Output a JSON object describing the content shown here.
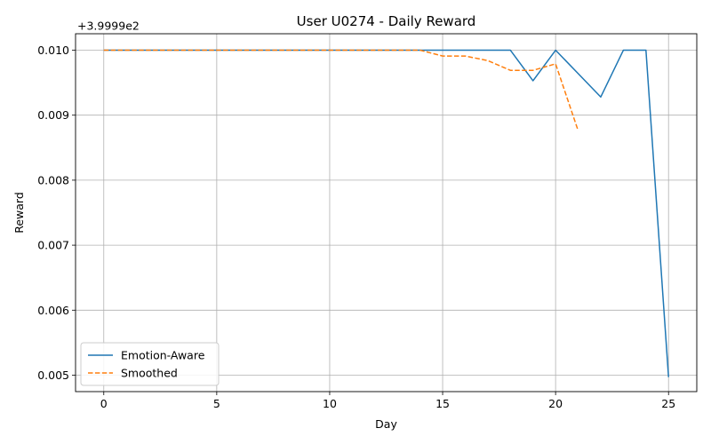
{
  "chart_data": {
    "type": "line",
    "title": "User U0274 - Daily Reward",
    "xlabel": "Day",
    "ylabel": "Reward",
    "offset_text": "+3.9999e2",
    "xlim": [
      -1.25,
      26.25
    ],
    "ylim": [
      0.004747,
      0.010253
    ],
    "xticks": [
      0,
      5,
      10,
      15,
      20,
      25
    ],
    "xtick_labels": [
      "0",
      "5",
      "10",
      "15",
      "20",
      "25"
    ],
    "yticks": [
      0.005,
      0.006,
      0.007,
      0.008,
      0.009,
      0.01
    ],
    "ytick_labels": [
      "0.005",
      "0.006",
      "0.007",
      "0.008",
      "0.009",
      "0.010"
    ],
    "grid": true,
    "legend_position": "lower-left",
    "series": [
      {
        "name": "Emotion-Aware",
        "color": "#1f77b4",
        "style": "solid",
        "x": [
          0,
          1,
          2,
          3,
          4,
          5,
          6,
          7,
          8,
          9,
          10,
          11,
          12,
          13,
          14,
          15,
          16,
          17,
          18,
          19,
          20,
          21,
          22,
          23,
          24,
          25
        ],
        "y": [
          0.01,
          0.01,
          0.01,
          0.01,
          0.01,
          0.01,
          0.01,
          0.01,
          0.01,
          0.01,
          0.01,
          0.01,
          0.01,
          0.01,
          0.01,
          0.01,
          0.01,
          0.01,
          0.01,
          0.00953,
          0.01,
          0.00964,
          0.00928,
          0.01,
          0.01,
          0.00497
        ]
      },
      {
        "name": "Smoothed",
        "color": "#ff7f0e",
        "style": "dashed",
        "x": [
          0,
          1,
          2,
          3,
          4,
          5,
          6,
          7,
          8,
          9,
          10,
          11,
          12,
          13,
          14,
          15,
          16,
          17,
          18,
          19,
          20,
          21
        ],
        "y": [
          0.01,
          0.01,
          0.01,
          0.01,
          0.01,
          0.01,
          0.01,
          0.01,
          0.01,
          0.01,
          0.01,
          0.01,
          0.01,
          0.01,
          0.01,
          0.00991,
          0.00991,
          0.00984,
          0.00969,
          0.00969,
          0.00979,
          0.00876
        ]
      }
    ]
  }
}
